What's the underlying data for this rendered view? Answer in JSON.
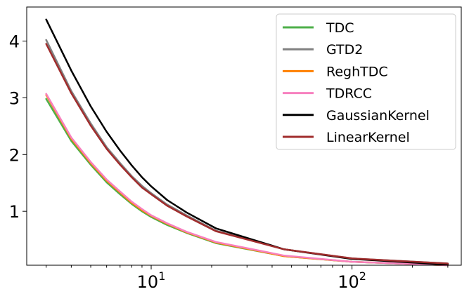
{
  "chart_data": {
    "type": "line",
    "title": "",
    "xlabel": "",
    "ylabel": "",
    "x_scale": "log",
    "xlim": [
      2.4,
      350
    ],
    "ylim": [
      0.05,
      4.6
    ],
    "x_ticks": [
      {
        "value": 10,
        "base": "10",
        "exp": "1"
      },
      {
        "value": 100,
        "base": "10",
        "exp": "2"
      }
    ],
    "y_ticks": [
      {
        "value": 1,
        "label": "1"
      },
      {
        "value": 2,
        "label": "2"
      },
      {
        "value": 3,
        "label": "3"
      },
      {
        "value": 4,
        "label": "4"
      }
    ],
    "grid": false,
    "legend_position": "top-right",
    "x": [
      3,
      4,
      5,
      6,
      7,
      8,
      9,
      10,
      12,
      15,
      21,
      46,
      100,
      300
    ],
    "series": [
      {
        "name": "TDC",
        "color": "#4daf4a",
        "values": [
          2.98,
          2.24,
          1.82,
          1.51,
          1.3,
          1.13,
          1.0,
          0.9,
          0.76,
          0.62,
          0.44,
          0.21,
          0.11,
          0.05
        ]
      },
      {
        "name": "GTD2",
        "color": "#808080",
        "values": [
          4.02,
          3.12,
          2.55,
          2.13,
          1.85,
          1.62,
          1.45,
          1.32,
          1.12,
          0.93,
          0.66,
          0.33,
          0.17,
          0.08
        ]
      },
      {
        "name": "ReghTDC",
        "color": "#ff7f00",
        "values": [
          3.05,
          2.28,
          1.85,
          1.54,
          1.33,
          1.15,
          1.02,
          0.92,
          0.78,
          0.63,
          0.45,
          0.21,
          0.11,
          0.05
        ]
      },
      {
        "name": "TDRCC",
        "color": "#f781bf",
        "values": [
          3.07,
          2.3,
          1.87,
          1.56,
          1.35,
          1.17,
          1.04,
          0.93,
          0.79,
          0.64,
          0.46,
          0.22,
          0.11,
          0.05
        ]
      },
      {
        "name": "GaussianKernel",
        "color": "#000000",
        "values": [
          4.38,
          3.48,
          2.85,
          2.4,
          2.07,
          1.81,
          1.6,
          1.44,
          1.2,
          0.98,
          0.7,
          0.33,
          0.16,
          0.06
        ]
      },
      {
        "name": "LinearKernel",
        "color": "#a02c2c",
        "values": [
          3.95,
          3.08,
          2.51,
          2.1,
          1.82,
          1.6,
          1.42,
          1.3,
          1.1,
          0.91,
          0.65,
          0.33,
          0.17,
          0.08
        ]
      }
    ]
  }
}
